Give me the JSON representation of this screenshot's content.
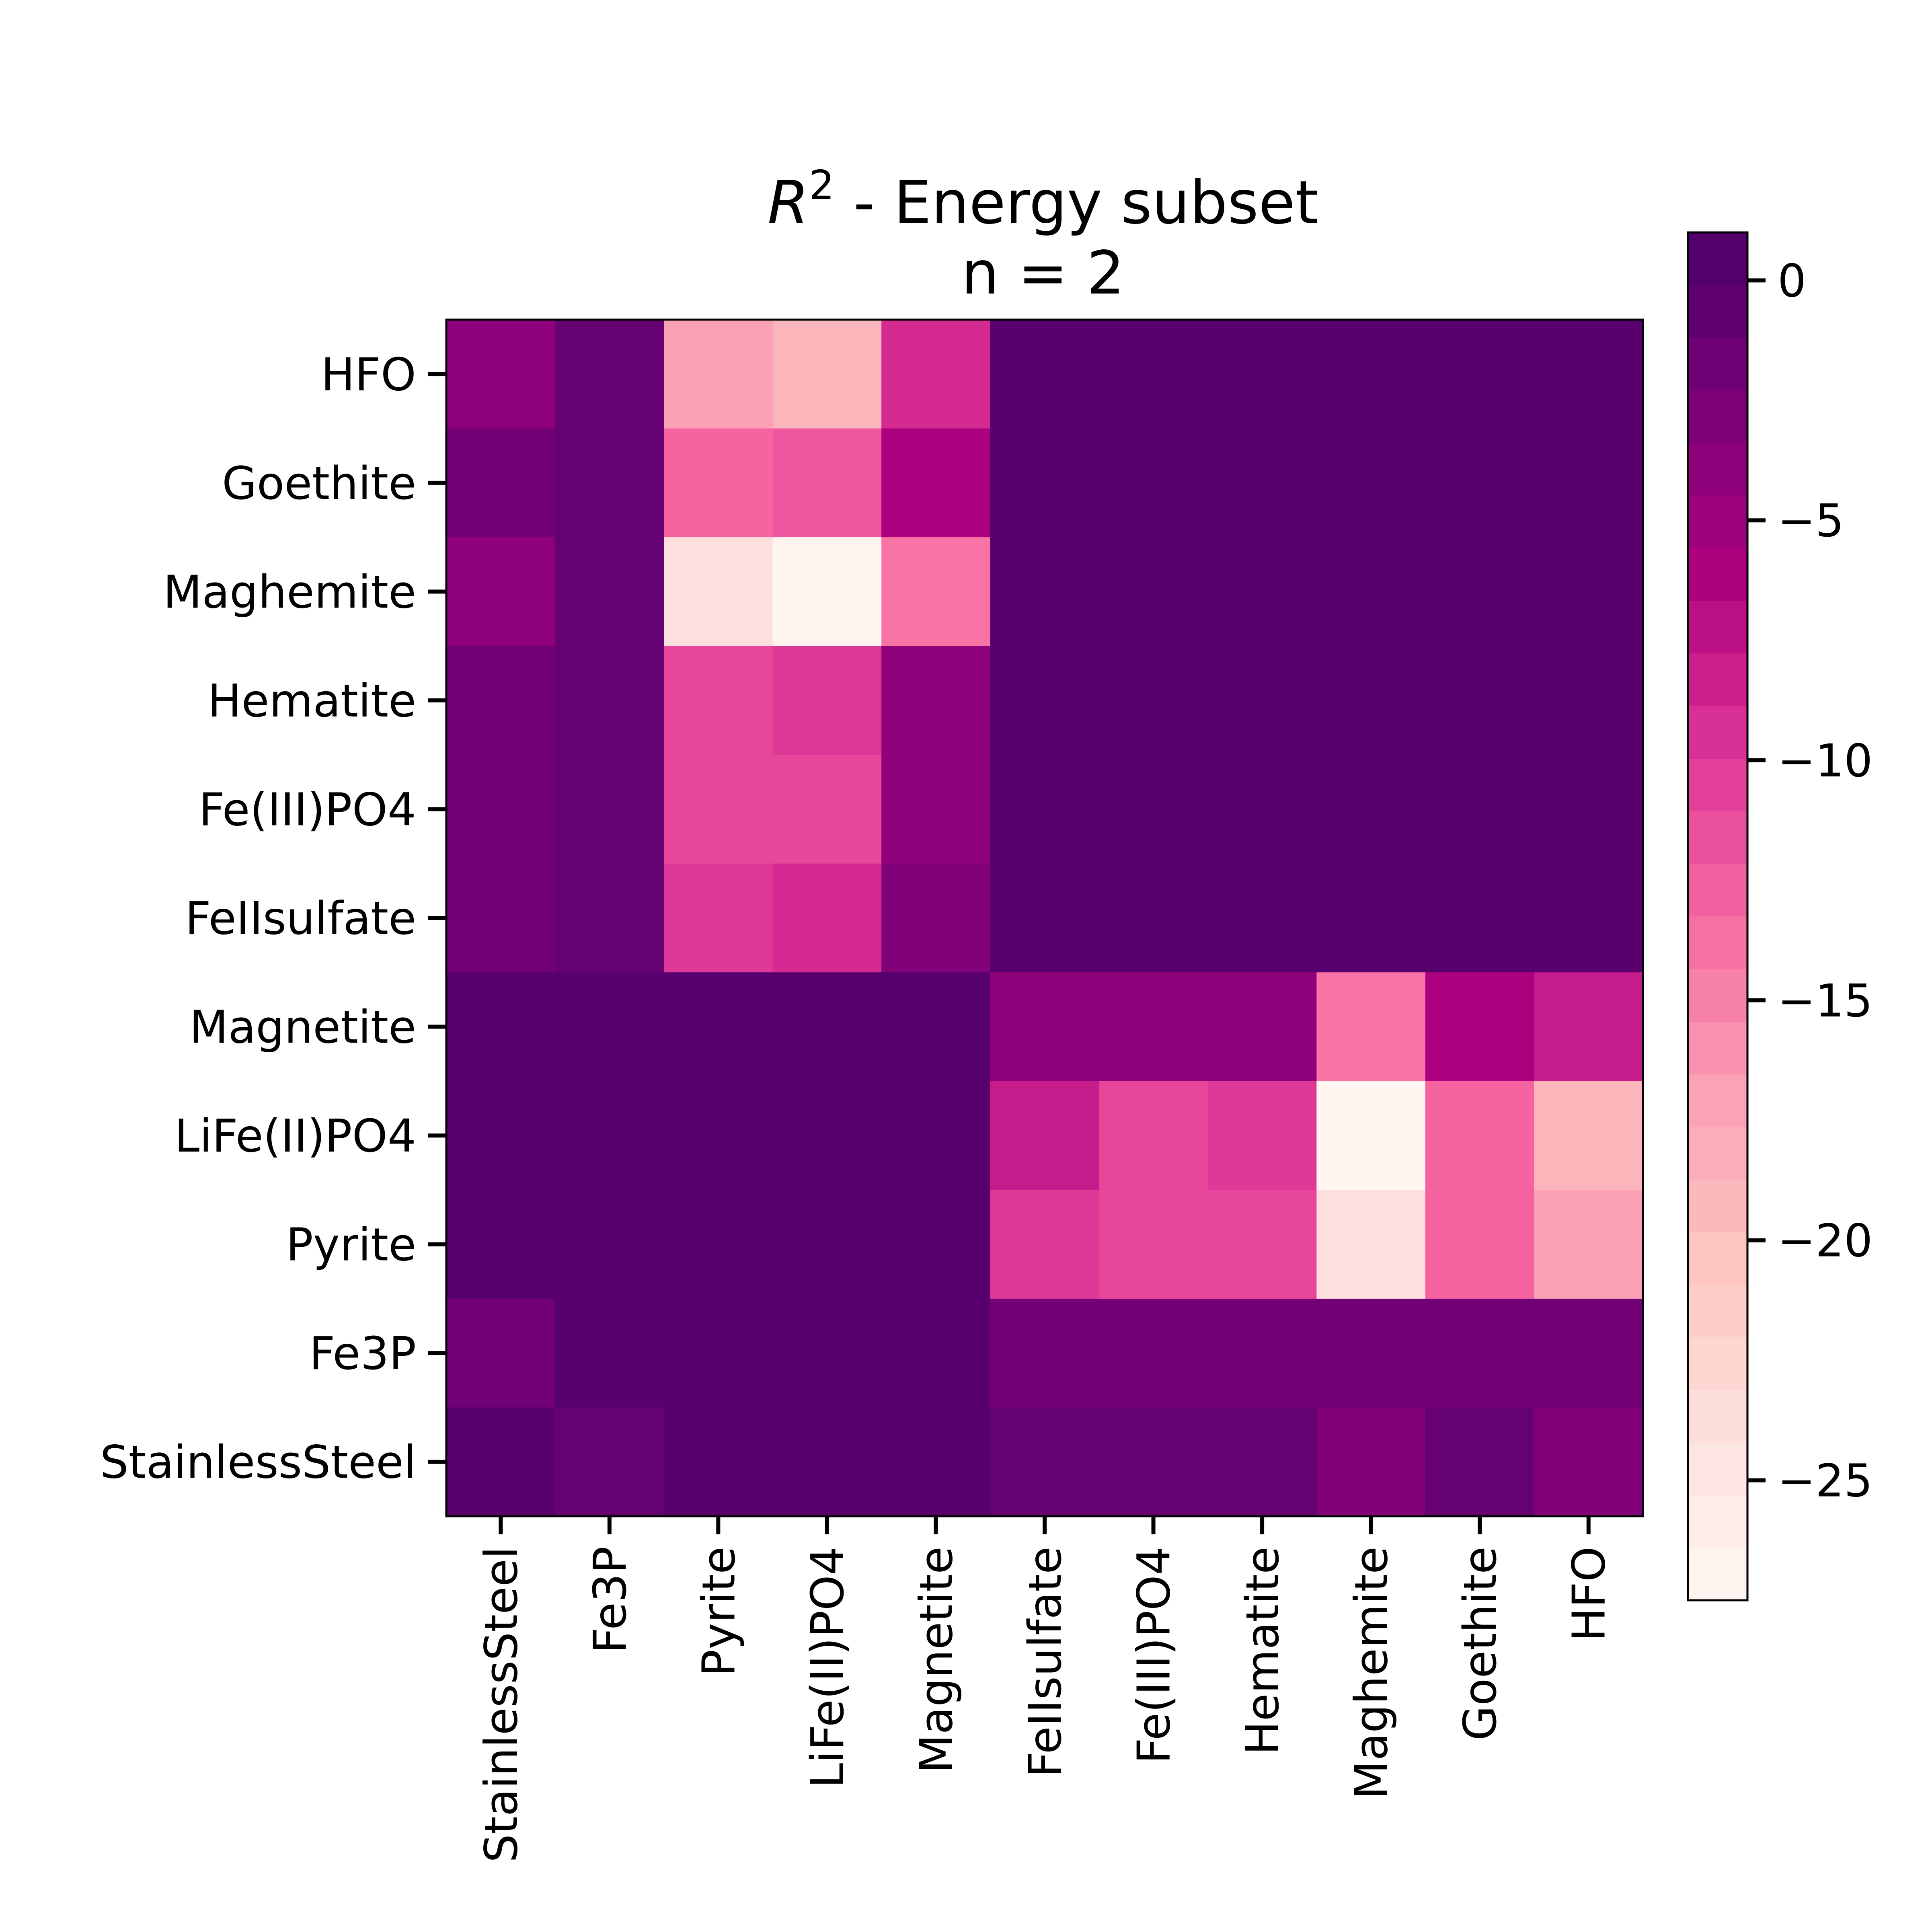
{
  "chart_data": {
    "type": "heatmap",
    "title": {
      "symbol": "R",
      "superscript": "2",
      "main": " - Energy subset",
      "subtitle": "n = 2"
    },
    "x_categories": [
      "StainlessSteel",
      "Fe3P",
      "Pyrite",
      "LiFe(II)PO4",
      "Magnetite",
      "FeIIsulfate",
      "Fe(III)PO4",
      "Hematite",
      "Maghemite",
      "Goethite",
      "HFO"
    ],
    "y_categories": [
      "HFO",
      "Goethite",
      "Maghemite",
      "Hematite",
      "Fe(III)PO4",
      "FeIIsulfate",
      "Magnetite",
      "LiFe(II)PO4",
      "Pyrite",
      "Fe3P",
      "StainlessSteel"
    ],
    "values": [
      [
        -4,
        -1,
        -17,
        -19,
        -9,
        0,
        0,
        0,
        0,
        0,
        0
      ],
      [
        -2,
        -1,
        -13,
        -12,
        -6,
        0,
        0,
        0,
        0,
        0,
        0
      ],
      [
        -4,
        -1,
        -24,
        -27,
        -14,
        0,
        0,
        0,
        0,
        0,
        0
      ],
      [
        -2,
        -1,
        -11,
        -10,
        -4,
        0,
        0,
        0,
        0,
        0,
        0
      ],
      [
        -2,
        -1,
        -11,
        -11,
        -4,
        0,
        0,
        0,
        0,
        0,
        0
      ],
      [
        -2,
        -1,
        -10,
        -9,
        -3,
        0,
        0,
        0,
        0,
        0,
        0
      ],
      [
        0,
        0,
        0,
        0,
        0,
        -4,
        -4,
        -4,
        -14,
        -6,
        -8
      ],
      [
        0,
        0,
        0,
        0,
        0,
        -8,
        -11,
        -10,
        -27,
        -13,
        -19
      ],
      [
        0,
        0,
        0,
        0,
        0,
        -10,
        -11,
        -11,
        -24,
        -13,
        -17
      ],
      [
        -2,
        0,
        0,
        0,
        0,
        -2,
        -2,
        -2,
        -2,
        -2,
        -2
      ],
      [
        0,
        -1,
        0,
        0,
        0,
        -1,
        -1,
        -1,
        -3,
        -1,
        -3
      ]
    ],
    "colorbar": {
      "min": -27.5,
      "max": 1,
      "ticks": [
        0,
        -5,
        -10,
        -15,
        -20,
        -25
      ],
      "tick_labels": [
        "0",
        "−5",
        "−10",
        "−15",
        "−20",
        "−25"
      ],
      "colormap": "RdPu",
      "colors": [
        "#fff7f3",
        "#fde0dd",
        "#fcc5c0",
        "#fa9fb5",
        "#f768a1",
        "#dd3497",
        "#ae017e",
        "#7a0177",
        "#49006a"
      ]
    }
  }
}
